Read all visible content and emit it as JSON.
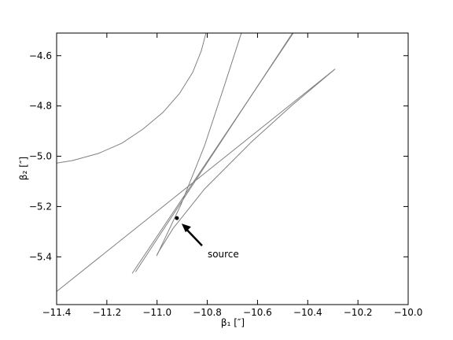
{
  "chart_data": {
    "type": "line",
    "xlabel": "β₁ [″]",
    "ylabel": "β₂ [″]",
    "xlim": [
      -11.4,
      -10.0
    ],
    "ylim": [
      -5.59,
      -4.51
    ],
    "xticks": [
      {
        "value": -11.4,
        "label": "−11.4"
      },
      {
        "value": -11.2,
        "label": "−11.2"
      },
      {
        "value": -11.0,
        "label": "−11.0"
      },
      {
        "value": -10.8,
        "label": "−10.8"
      },
      {
        "value": -10.6,
        "label": "−10.6"
      },
      {
        "value": -10.4,
        "label": "−10.4"
      },
      {
        "value": -10.2,
        "label": "−10.2"
      },
      {
        "value": -10.0,
        "label": "−10.0"
      }
    ],
    "yticks": [
      {
        "value": -5.4,
        "label": "−5.4"
      },
      {
        "value": -5.2,
        "label": "−5.2"
      },
      {
        "value": -5.0,
        "label": "−5.0"
      },
      {
        "value": -4.8,
        "label": "−4.8"
      },
      {
        "value": -4.6,
        "label": "−4.6"
      }
    ],
    "grid": false,
    "series": [
      {
        "color": "#808080",
        "x": [
          -11.4,
          -11.337,
          -11.234,
          -11.14,
          -11.056,
          -10.977,
          -10.911,
          -10.858,
          -10.824,
          -10.805
        ],
        "values": [
          -5.027,
          -5.017,
          -4.989,
          -4.948,
          -4.892,
          -4.826,
          -4.751,
          -4.666,
          -4.581,
          -4.509
        ]
      },
      {
        "color": "#808080",
        "x": [
          -11.002,
          -10.905,
          -10.811,
          -10.733,
          -10.664
        ],
        "values": [
          -5.397,
          -5.193,
          -4.958,
          -4.722,
          -4.509
        ]
      },
      {
        "color": "#808080",
        "x": [
          -11.099,
          -10.457
        ],
        "values": [
          -5.466,
          -4.509
        ]
      },
      {
        "color": "#808080",
        "x": [
          -11.086,
          -10.46
        ],
        "values": [
          -5.46,
          -4.509
        ]
      },
      {
        "color": "#808080",
        "x": [
          -11.4,
          -10.291,
          -10.467,
          -10.623,
          -10.811,
          -10.936,
          -11.0
        ],
        "values": [
          -5.538,
          -4.653,
          -4.801,
          -4.942,
          -5.13,
          -5.287,
          -5.39
        ]
      }
    ],
    "annotation": {
      "text": "source",
      "x": -10.921,
      "y": -5.246
    }
  }
}
